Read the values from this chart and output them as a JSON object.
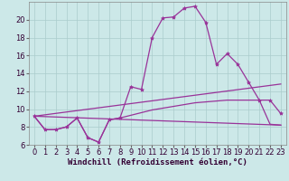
{
  "background_color": "#cce8e8",
  "grid_color": "#aacccc",
  "line_color": "#993399",
  "marker": "*",
  "xlabel": "Windchill (Refroidissement éolien,°C)",
  "xlabel_fontsize": 6.5,
  "tick_fontsize": 6.0,
  "xlim": [
    -0.5,
    23.5
  ],
  "ylim": [
    6,
    22
  ],
  "yticks": [
    6,
    8,
    10,
    12,
    14,
    16,
    18,
    20
  ],
  "xticks": [
    0,
    1,
    2,
    3,
    4,
    5,
    6,
    7,
    8,
    9,
    10,
    11,
    12,
    13,
    14,
    15,
    16,
    17,
    18,
    19,
    20,
    21,
    22,
    23
  ],
  "series": [
    {
      "x": [
        0,
        1,
        2,
        3,
        4,
        5,
        6,
        7,
        8,
        9,
        10,
        11,
        12,
        13,
        14,
        15,
        16,
        17,
        18,
        19,
        20,
        21,
        22,
        23
      ],
      "y": [
        9.2,
        7.7,
        7.7,
        8.0,
        9.0,
        6.8,
        6.3,
        8.8,
        9.0,
        12.5,
        12.2,
        18.0,
        20.2,
        20.3,
        21.3,
        21.5,
        19.7,
        15.0,
        16.2,
        15.0,
        13.0,
        11.0,
        11.0,
        9.5
      ],
      "has_markers": true
    },
    {
      "x": [
        0,
        1,
        2,
        3,
        4,
        5,
        6,
        7,
        8,
        9,
        10,
        11,
        12,
        13,
        14,
        15,
        16,
        17,
        18,
        19,
        20,
        21,
        22,
        23
      ],
      "y": [
        9.2,
        7.7,
        7.7,
        8.0,
        9.0,
        6.8,
        6.3,
        8.8,
        9.0,
        9.3,
        9.6,
        9.9,
        10.1,
        10.3,
        10.5,
        10.7,
        10.8,
        10.9,
        11.0,
        11.0,
        11.0,
        11.0,
        8.3,
        8.2
      ],
      "has_markers": false
    },
    {
      "x": [
        0,
        23
      ],
      "y": [
        9.2,
        8.2
      ],
      "has_markers": false
    },
    {
      "x": [
        0,
        23
      ],
      "y": [
        9.2,
        12.8
      ],
      "has_markers": false
    }
  ]
}
